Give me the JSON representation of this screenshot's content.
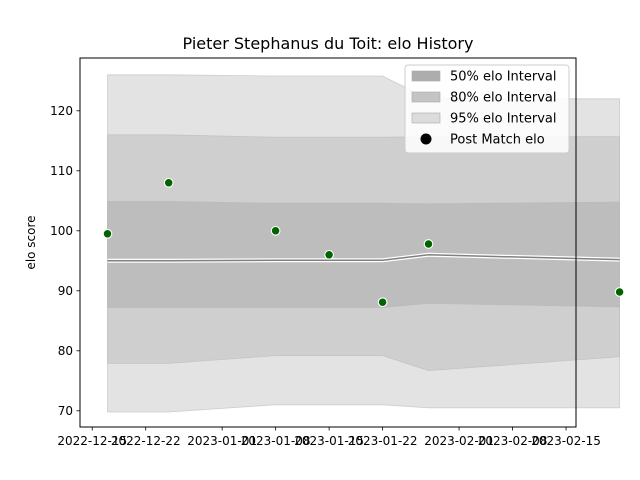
{
  "chart_data": {
    "type": "line",
    "title": "Pieter Stephanus du Toit: elo History",
    "xlabel": "",
    "ylabel": "elo score",
    "x_tick_labels": [
      "2022-12-15",
      "2022-12-22",
      "2023-01-01",
      "2023-01-08",
      "2023-01-15",
      "2023-01-22",
      "2023-02-01",
      "2023-02-08",
      "2023-02-15"
    ],
    "x_ticks_day_offsets": [
      0,
      7,
      17,
      24,
      31,
      38,
      48,
      55,
      62
    ],
    "xlim_days": [
      -1.6,
      63.3
    ],
    "ylim": [
      67.3,
      128.8
    ],
    "y_ticks": [
      70,
      80,
      90,
      100,
      110,
      120
    ],
    "grid": false,
    "legend_position": "top-right",
    "dates": [
      "2022-12-17",
      "2022-12-25",
      "2023-01-08",
      "2023-01-15",
      "2023-01-22",
      "2023-01-28",
      "2023-02-22"
    ],
    "series": [
      {
        "name": "95% elo Interval",
        "kind": "band",
        "color": "#e3e3e3",
        "lower": [
          69.8,
          69.8,
          71.0,
          71.0,
          71.0,
          70.5,
          70.5
        ],
        "upper": [
          126.0,
          126.0,
          125.8,
          125.8,
          125.8,
          122.0,
          122.0
        ]
      },
      {
        "name": "80% elo Interval",
        "kind": "band",
        "color": "#cfcfcf",
        "lower": [
          77.9,
          77.9,
          79.2,
          79.2,
          79.2,
          76.7,
          79.0
        ],
        "upper": [
          116.0,
          116.0,
          115.6,
          115.6,
          115.6,
          115.7,
          115.7
        ]
      },
      {
        "name": "50% elo Interval",
        "kind": "band",
        "color": "#bdbdbd",
        "lower": [
          87.2,
          87.2,
          87.2,
          87.2,
          87.2,
          87.9,
          87.3
        ],
        "upper": [
          104.9,
          104.9,
          104.6,
          104.6,
          104.6,
          104.5,
          104.8
        ]
      },
      {
        "name": "Mean",
        "kind": "line",
        "color": "#808080",
        "values": [
          95.0,
          95.0,
          95.1,
          95.1,
          95.1,
          96.0,
          95.2
        ]
      },
      {
        "name": "Post Match elo",
        "kind": "scatter",
        "color": "#006400",
        "values": [
          99.5,
          108.0,
          100.0,
          96.0,
          88.1,
          97.8,
          89.8
        ]
      }
    ],
    "legend": [
      {
        "label": "50% elo Interval",
        "swatch": "#adadad"
      },
      {
        "label": "80% elo Interval",
        "swatch": "#c4c4c4"
      },
      {
        "label": "95% elo Interval",
        "swatch": "#dcdcdc"
      },
      {
        "label": "Post Match elo",
        "swatch": "#000000"
      }
    ]
  }
}
